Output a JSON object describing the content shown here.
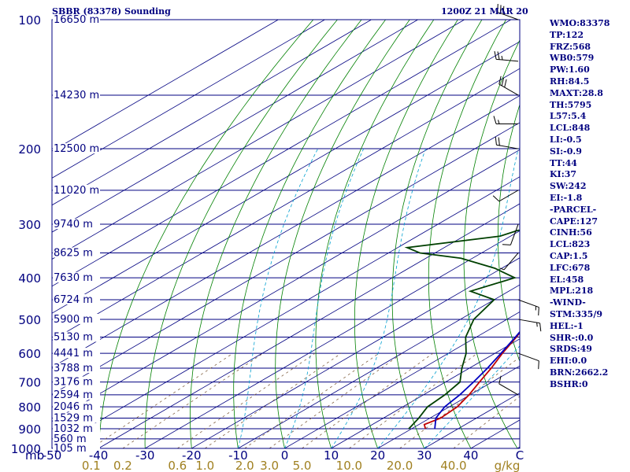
{
  "header": {
    "station": "SBBR (83378) Sounding",
    "time": "1200Z 21 MAR 20"
  },
  "stats": [
    "WMO:83378",
    "TP:122",
    "FRZ:568",
    "WB0:579",
    "PW:1.60",
    "RH:84.5",
    "MAXT:28.8",
    "TH:5795",
    "L57:5.4",
    "LCL:848",
    "LI:-0.5",
    "SI:-0.9",
    "TT:44",
    "KI:37",
    "SW:242",
    "EI:-1.8",
    "-PARCEL-",
    "CAPE:127",
    "CINH:56",
    "LCL:823",
    "CAP:1.5",
    "LFC:678",
    "EL:458",
    "MPL:218",
    "-WIND-",
    "STM:335/9",
    "HEL:-1",
    "SHR-:0.0",
    "SRDS:49",
    "EHI:0.0",
    "BRN:2662.2",
    "BSHR:0"
  ],
  "colors": {
    "frame": "#000080",
    "isotherm": "#000080",
    "dry_adiabat": "#008000",
    "moist_adiabat": "#00a0d0",
    "mixing_ratio": "#806040",
    "temperature": "#c00000",
    "dewpoint": "#004000",
    "parcel": "#0000c0",
    "wind_barbs": "#000000",
    "mixing_labels": "#a08020"
  },
  "chart_data": {
    "type": "skew-t log-p sounding",
    "ylabel": "mb",
    "xlabel": "C",
    "pressure_range": [
      1000,
      100
    ],
    "temperature_range": [
      -50,
      50
    ],
    "pressure_levels": [
      {
        "p": 100,
        "label": "100",
        "height": "16650 m"
      },
      {
        "p": 150,
        "label": "",
        "height": "14230 m"
      },
      {
        "p": 200,
        "label": "200",
        "height": "12500 m"
      },
      {
        "p": 250,
        "label": "",
        "height": "11020 m"
      },
      {
        "p": 300,
        "label": "300",
        "height": "9740 m"
      },
      {
        "p": 350,
        "label": "",
        "height": "8625 m"
      },
      {
        "p": 400,
        "label": "400",
        "height": "7630 m"
      },
      {
        "p": 450,
        "label": "",
        "height": "6724 m"
      },
      {
        "p": 500,
        "label": "500",
        "height": "5900 m"
      },
      {
        "p": 550,
        "label": "",
        "height": "5130 m"
      },
      {
        "p": 600,
        "label": "600",
        "height": "4441 m"
      },
      {
        "p": 650,
        "label": "",
        "height": "3788 m"
      },
      {
        "p": 700,
        "label": "700",
        "height": "3176 m"
      },
      {
        "p": 750,
        "label": "",
        "height": "2594 m"
      },
      {
        "p": 800,
        "label": "800",
        "height": "2046 m"
      },
      {
        "p": 850,
        "label": "",
        "height": "1529 m"
      },
      {
        "p": 900,
        "label": "900",
        "height": "1032 m"
      },
      {
        "p": 950,
        "label": "",
        "height": "560 m"
      },
      {
        "p": 1000,
        "label": "1000",
        "height": "105 m"
      }
    ],
    "temperature_ticks": [
      "-50",
      "-40",
      "-30",
      "-20",
      "-10",
      "0",
      "10",
      "20",
      "30",
      "40"
    ],
    "mixing_ratio_labels": [
      0.1,
      0.2,
      0.6,
      1.0,
      2.0,
      3.0,
      5.0,
      10.0,
      20.0,
      40.0
    ],
    "mixing_ratio_unit": "g/kg",
    "temperature_profile": [
      [
        900,
        23.0
      ],
      [
        880,
        21.2
      ],
      [
        850,
        22.3
      ],
      [
        800,
        21.7
      ],
      [
        750,
        19.8
      ],
      [
        700,
        17.3
      ],
      [
        650,
        14.7
      ],
      [
        600,
        11.6
      ],
      [
        550,
        8.6
      ],
      [
        500,
        5.0
      ],
      [
        450,
        1.3
      ],
      [
        430,
        1.2
      ],
      [
        400,
        -3.0
      ],
      [
        350,
        -9.2
      ],
      [
        300,
        -16.4
      ],
      [
        250,
        -26.0
      ],
      [
        200,
        -37.5
      ],
      [
        150,
        -54.2
      ],
      [
        125,
        -64.9
      ],
      [
        100,
        -73.6
      ]
    ],
    "dewpoint_profile": [
      [
        900,
        19.4
      ],
      [
        880,
        18.7
      ],
      [
        850,
        17.6
      ],
      [
        800,
        15.3
      ],
      [
        750,
        14.6
      ],
      [
        700,
        13.1
      ],
      [
        650,
        8.4
      ],
      [
        600,
        3.8
      ],
      [
        550,
        -2.3
      ],
      [
        500,
        -7.1
      ],
      [
        450,
        -10.0
      ],
      [
        430,
        -18.2
      ],
      [
        400,
        -13.7
      ],
      [
        380,
        -21.5
      ],
      [
        360,
        -32.5
      ],
      [
        350,
        -43.3
      ],
      [
        340,
        -48.0
      ],
      [
        320,
        -32.3
      ],
      [
        310,
        -30.5
      ],
      [
        300,
        -17.8
      ],
      [
        280,
        -12.5
      ],
      [
        260,
        -14.2
      ],
      [
        240,
        -26.0
      ],
      [
        230,
        -20.5
      ],
      [
        200,
        -43.0
      ],
      [
        150,
        -66.7
      ],
      [
        120,
        -78.6
      ],
      [
        100,
        -82.1
      ]
    ],
    "parcel_profile": [
      [
        900,
        25.0
      ],
      [
        850,
        21.3
      ],
      [
        800,
        19.0
      ],
      [
        750,
        17.8
      ],
      [
        700,
        16.0
      ],
      [
        650,
        13.9
      ],
      [
        600,
        11.3
      ],
      [
        550,
        8.4
      ],
      [
        500,
        5.1
      ],
      [
        450,
        1.2
      ],
      [
        400,
        -3.5
      ],
      [
        350,
        -9.7
      ],
      [
        300,
        -17.0
      ],
      [
        250,
        -27.0
      ],
      [
        200,
        -40.9
      ],
      [
        150,
        -61.2
      ],
      [
        130,
        -72.4
      ]
    ],
    "wind_barbs": [
      {
        "p": 100,
        "dir": 290,
        "kt": 30
      },
      {
        "p": 125,
        "dir": 275,
        "kt": 25
      },
      {
        "p": 150,
        "dir": 300,
        "kt": 30
      },
      {
        "p": 175,
        "dir": 270,
        "kt": 15
      },
      {
        "p": 200,
        "dir": 280,
        "kt": 20
      },
      {
        "p": 250,
        "dir": 240,
        "kt": 10
      },
      {
        "p": 300,
        "dir": 200,
        "kt": 10
      },
      {
        "p": 350,
        "dir": 220,
        "kt": 5
      },
      {
        "p": 450,
        "dir": 110,
        "kt": 15
      },
      {
        "p": 500,
        "dir": 100,
        "kt": 15
      },
      {
        "p": 600,
        "dir": 110,
        "kt": 10
      },
      {
        "p": 750,
        "dir": 300,
        "kt": 10
      }
    ]
  }
}
